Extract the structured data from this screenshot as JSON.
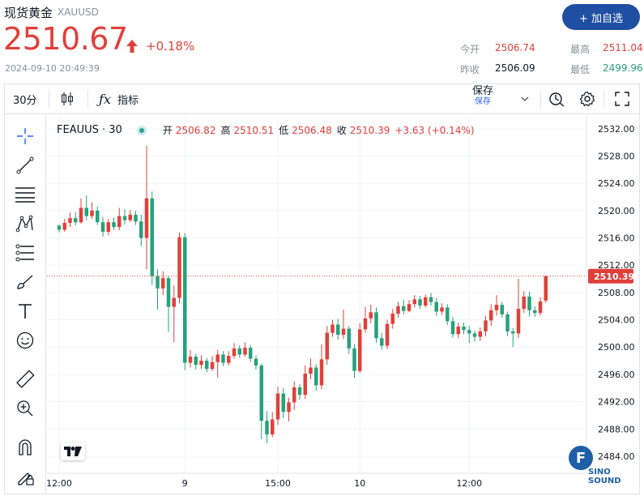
{
  "header": {
    "title": "现货黄金",
    "symbol": "XAUUSD",
    "add_button": "+ 加自选",
    "price": "2510.67",
    "change": "+0.18%",
    "timestamp": "2024-09-10 20:49:39",
    "stats": {
      "open_label": "今开",
      "open_value": "2506.74",
      "prev_label": "昨收",
      "prev_value": "2506.09",
      "high_label": "最高",
      "high_value": "2511.04",
      "low_label": "最低",
      "low_value": "2499.96"
    }
  },
  "toolbar": {
    "interval": "30分",
    "indicators": "指标",
    "save": "保存",
    "save_sub": "保存"
  },
  "legend": {
    "symbol": "FEAUUS · 30",
    "open_label": "开",
    "open": "2506.82",
    "high_label": "高",
    "high": "2510.51",
    "low_label": "低",
    "low": "2506.48",
    "close_label": "收",
    "close": "2510.39",
    "change": "+3.63 (+0.14%)"
  },
  "watermark": {
    "badge": "F",
    "text": "SINO SOUND"
  },
  "colors": {
    "up": "#e0403a",
    "down": "#26a17b",
    "accent": "#1f4fa3",
    "grid": "#f0f3fa"
  },
  "chart_data": {
    "type": "candlestick",
    "y_ticks": [
      "2532.00",
      "2528.00",
      "2524.00",
      "2520.00",
      "2516.00",
      "2512.00",
      "2508.00",
      "2504.00",
      "2500.00",
      "2496.00",
      "2492.00",
      "2488.00",
      "2484.00"
    ],
    "ylim": [
      2481.5,
      2534.0
    ],
    "x_labels": [
      "12:00",
      "9",
      "15:00",
      "10",
      "12:00"
    ],
    "x_label_index": [
      0,
      23,
      40,
      55,
      75
    ],
    "last_price_label": "2510.39",
    "last_price": 2510.39,
    "candles": [
      [
        2517.8,
        2517.2,
        2518.0,
        2516.8
      ],
      [
        2517.2,
        2518.2,
        2518.8,
        2516.9
      ],
      [
        2518.2,
        2518.9,
        2519.7,
        2517.6
      ],
      [
        2518.9,
        2518.3,
        2519.8,
        2517.8
      ],
      [
        2518.3,
        2520.4,
        2521.8,
        2518.1
      ],
      [
        2520.4,
        2519.2,
        2522.2,
        2518.6
      ],
      [
        2519.2,
        2520.0,
        2521.2,
        2518.8
      ],
      [
        2520.0,
        2518.3,
        2520.6,
        2517.9
      ],
      [
        2518.3,
        2516.9,
        2519.1,
        2516.2
      ],
      [
        2516.9,
        2518.3,
        2518.8,
        2516.4
      ],
      [
        2518.3,
        2517.6,
        2519.0,
        2517.2
      ],
      [
        2517.6,
        2519.2,
        2520.4,
        2517.1
      ],
      [
        2519.2,
        2518.6,
        2520.2,
        2518.0
      ],
      [
        2518.6,
        2519.4,
        2520.1,
        2518.3
      ],
      [
        2519.4,
        2518.4,
        2520.0,
        2517.9
      ],
      [
        2518.4,
        2516.0,
        2519.4,
        2514.8
      ],
      [
        2516.0,
        2521.8,
        2529.5,
        2511.4
      ],
      [
        2521.8,
        2510.4,
        2522.8,
        2509.1
      ],
      [
        2510.4,
        2508.6,
        2511.4,
        2505.5
      ],
      [
        2508.6,
        2510.1,
        2511.1,
        2507.6
      ],
      [
        2510.1,
        2505.9,
        2510.4,
        2502.2
      ],
      [
        2505.9,
        2507.2,
        2509.0,
        2500.7
      ],
      [
        2507.2,
        2516.1,
        2516.8,
        2506.4
      ],
      [
        2516.1,
        2497.7,
        2516.7,
        2496.6
      ],
      [
        2497.7,
        2498.6,
        2499.6,
        2497.0
      ],
      [
        2498.6,
        2497.4,
        2499.0,
        2496.7
      ],
      [
        2497.4,
        2498.0,
        2498.8,
        2496.8
      ],
      [
        2498.0,
        2496.8,
        2498.4,
        2496.3
      ],
      [
        2496.8,
        2497.8,
        2498.7,
        2496.5
      ],
      [
        2497.8,
        2498.9,
        2499.6,
        2495.5
      ],
      [
        2498.9,
        2497.7,
        2499.4,
        2497.2
      ],
      [
        2497.7,
        2498.7,
        2499.4,
        2497.3
      ],
      [
        2498.7,
        2499.8,
        2500.6,
        2498.3
      ],
      [
        2499.8,
        2498.9,
        2500.3,
        2498.4
      ],
      [
        2498.9,
        2499.9,
        2500.7,
        2498.6
      ],
      [
        2499.9,
        2498.3,
        2500.3,
        2497.8
      ],
      [
        2498.3,
        2497.3,
        2498.8,
        2496.7
      ],
      [
        2497.3,
        2489.2,
        2497.6,
        2486.5
      ],
      [
        2489.2,
        2487.2,
        2490.6,
        2485.9
      ],
      [
        2487.2,
        2489.4,
        2490.5,
        2486.8
      ],
      [
        2489.4,
        2493.2,
        2494.2,
        2488.6
      ],
      [
        2493.2,
        2490.5,
        2494.0,
        2489.6
      ],
      [
        2490.5,
        2491.9,
        2492.6,
        2489.1
      ],
      [
        2491.9,
        2494.1,
        2495.0,
        2490.8
      ],
      [
        2494.1,
        2493.0,
        2494.6,
        2492.3
      ],
      [
        2493.0,
        2496.1,
        2497.3,
        2492.4
      ],
      [
        2496.1,
        2497.0,
        2498.3,
        2495.3
      ],
      [
        2497.0,
        2494.4,
        2497.5,
        2493.6
      ],
      [
        2494.4,
        2498.2,
        2500.4,
        2493.8
      ],
      [
        2498.2,
        2502.1,
        2503.1,
        2497.4
      ],
      [
        2502.1,
        2503.3,
        2504.0,
        2501.5
      ],
      [
        2503.3,
        2501.8,
        2504.1,
        2501.1
      ],
      [
        2501.8,
        2502.7,
        2505.5,
        2501.2
      ],
      [
        2502.7,
        2499.8,
        2503.1,
        2499.0
      ],
      [
        2499.8,
        2496.5,
        2500.4,
        2495.5
      ],
      [
        2496.5,
        2502.6,
        2503.5,
        2496.2
      ],
      [
        2502.6,
        2504.2,
        2505.9,
        2502.1
      ],
      [
        2504.2,
        2505.1,
        2506.2,
        2503.5
      ],
      [
        2505.1,
        2501.3,
        2505.8,
        2500.6
      ],
      [
        2501.3,
        2500.2,
        2502.1,
        2499.6
      ],
      [
        2500.2,
        2503.4,
        2504.0,
        2499.7
      ],
      [
        2503.4,
        2504.9,
        2505.6,
        2502.7
      ],
      [
        2504.9,
        2506.0,
        2506.6,
        2504.3
      ],
      [
        2506.0,
        2505.3,
        2506.9,
        2504.8
      ],
      [
        2505.3,
        2506.3,
        2506.9,
        2505.1
      ],
      [
        2506.3,
        2507.0,
        2507.6,
        2505.8
      ],
      [
        2507.0,
        2506.1,
        2507.5,
        2505.6
      ],
      [
        2506.1,
        2507.3,
        2507.7,
        2505.8
      ],
      [
        2507.3,
        2506.6,
        2507.9,
        2506.1
      ],
      [
        2506.6,
        2505.2,
        2507.2,
        2504.6
      ],
      [
        2505.2,
        2505.8,
        2506.4,
        2504.7
      ],
      [
        2505.8,
        2503.8,
        2506.3,
        2503.2
      ],
      [
        2503.8,
        2501.9,
        2504.4,
        2501.4
      ],
      [
        2501.9,
        2503.0,
        2503.6,
        2501.3
      ],
      [
        2503.0,
        2502.5,
        2503.6,
        2501.9
      ],
      [
        2502.5,
        2502.0,
        2503.1,
        2500.6
      ],
      [
        2502.0,
        2501.5,
        2502.4,
        2500.8
      ],
      [
        2501.5,
        2502.3,
        2502.9,
        2500.9
      ],
      [
        2502.3,
        2503.9,
        2504.6,
        2501.6
      ],
      [
        2503.9,
        2505.4,
        2506.3,
        2503.1
      ],
      [
        2505.4,
        2506.2,
        2507.6,
        2504.6
      ],
      [
        2506.2,
        2504.8,
        2506.6,
        2504.3
      ],
      [
        2504.8,
        2502.3,
        2505.2,
        2501.6
      ],
      [
        2502.3,
        2502.0,
        2502.8,
        2500.0
      ],
      [
        2502.0,
        2505.6,
        2510.0,
        2501.3
      ],
      [
        2505.6,
        2507.4,
        2508.2,
        2505.0
      ],
      [
        2507.4,
        2505.4,
        2508.1,
        2504.5
      ],
      [
        2505.4,
        2505.0,
        2506.0,
        2504.4
      ],
      [
        2505.0,
        2506.7,
        2507.3,
        2504.6
      ],
      [
        2506.82,
        2510.39,
        2510.51,
        2506.48
      ]
    ]
  }
}
